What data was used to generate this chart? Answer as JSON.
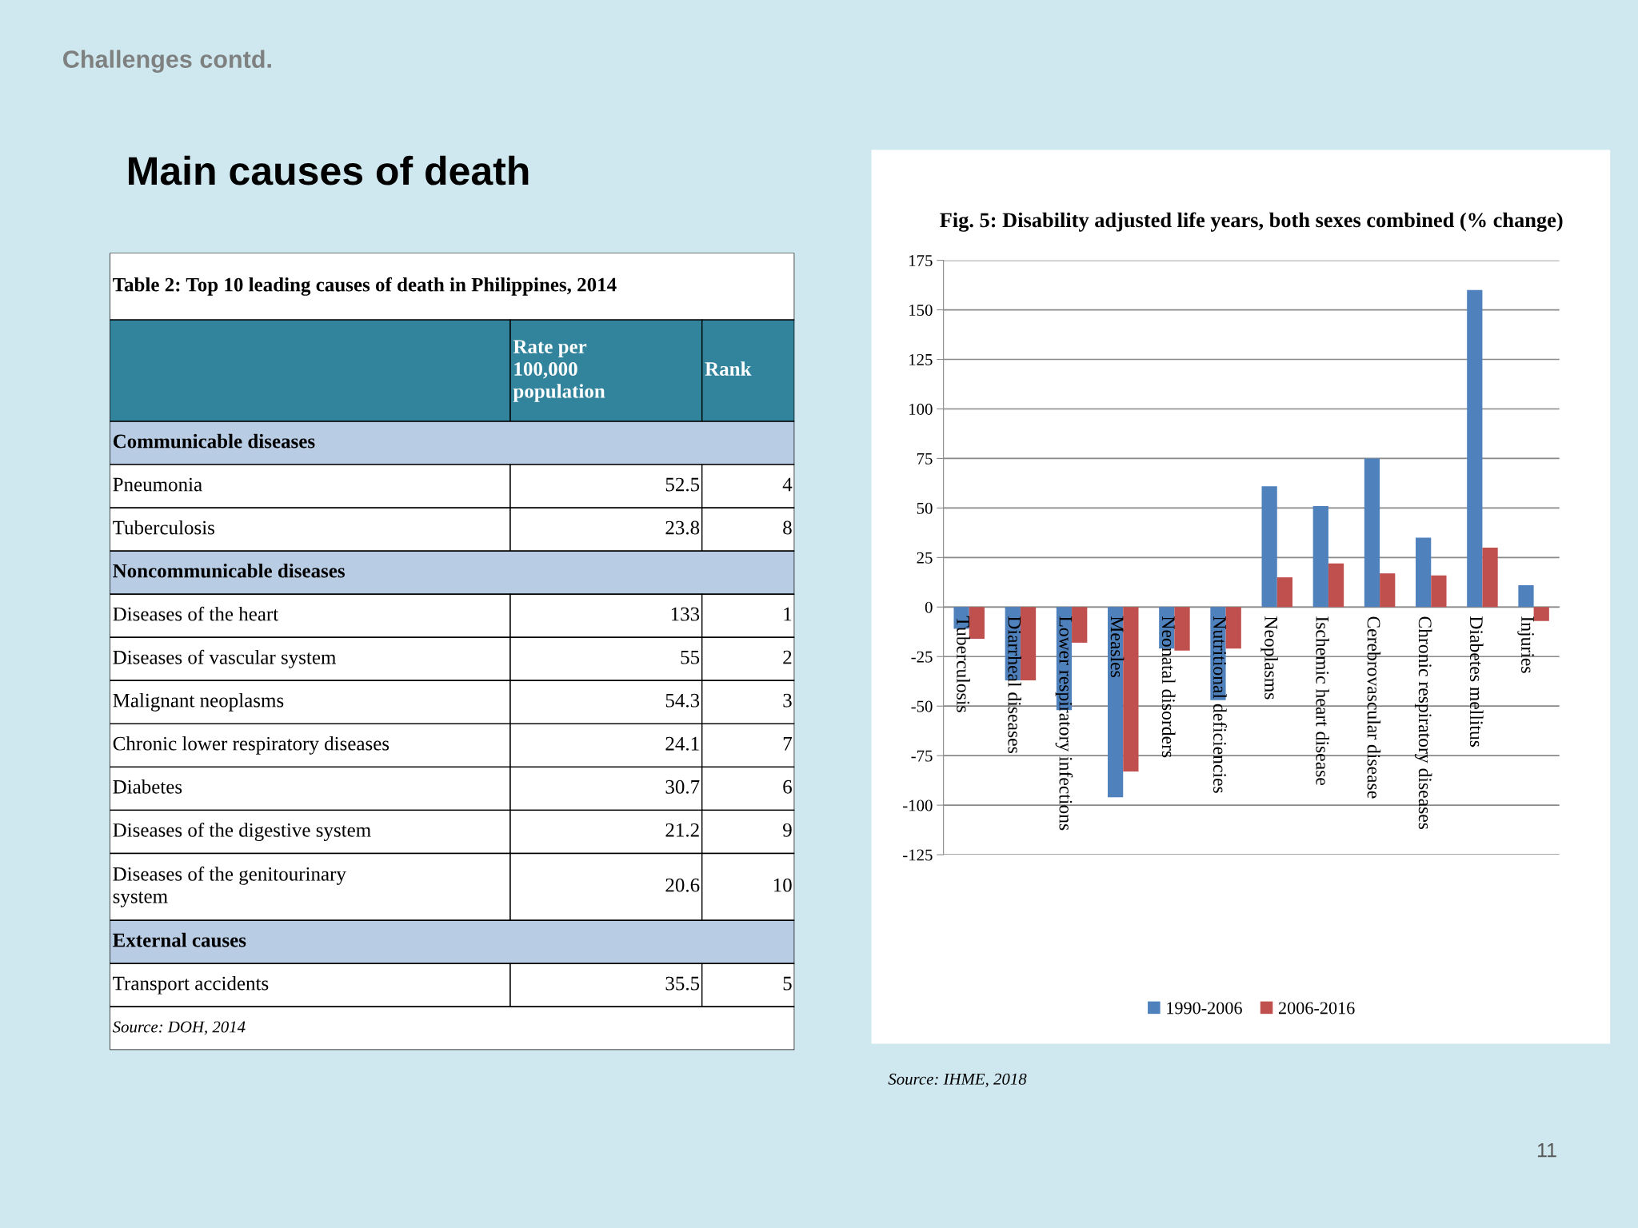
{
  "chart_data": [
    {
      "type": "other",
      "title": "Table 2: Top 10 leading causes of death in Philippines, 2014",
      "categories": [
        "Communicable diseases",
        "Pneumonia",
        "Tuberculosis",
        "Noncommunicable diseases",
        "Diseases of the heart",
        "Diseases of vascular system",
        "Malignant neoplasms",
        "Chronic lower respiratory diseases",
        "Diabetes",
        "Diseases of the digestive system",
        "Diseases of the genitourinary system",
        "External causes",
        "Transport accidents"
      ],
      "series": [
        {
          "values": [
            null,
            52.5,
            23.8,
            null,
            133,
            55,
            54.3,
            24.1,
            30.7,
            21.2,
            20.6,
            null,
            35.5
          ]
        },
        {
          "values": [
            null,
            4,
            8,
            null,
            1,
            2,
            3,
            7,
            6,
            9,
            10,
            null,
            5
          ]
        }
      ],
      "data_labels": true,
      "annotations": [
        "Challenges contd.",
        "Main causes of death",
        "Rate per 100,000 population",
        "Rank",
        "Source: DOH, 2014",
        "11"
      ]
    },
    {
      "type": "bar",
      "title": "Fig. 5: Disability adjusted life years, both sexes combined (% change)",
      "categories": [
        "Tuberculosis",
        "Diarrheal diseases",
        "Lower respiratory infections",
        "Measles",
        "Neonatal disorders",
        "Nutritional deficiencies",
        "Neoplasms",
        "Ischemic heart disease",
        "Cerebrovascular disease",
        "Chronic respiratory diseases",
        "Diabetes mellitus",
        "Injuries"
      ],
      "series": [
        {
          "name": "1990-2006",
          "color": "#4f81bd",
          "values": [
            -11,
            -37,
            -52,
            -96,
            -21,
            -47,
            61,
            51,
            75,
            35,
            160,
            11
          ]
        },
        {
          "name": "2006-2016",
          "color": "#c0504d",
          "values": [
            -16,
            -37,
            -18,
            -83,
            -22,
            -21,
            15,
            22,
            17,
            16,
            30,
            -7
          ]
        }
      ],
      "ylim": [
        -125,
        175
      ],
      "yticks": [
        -125,
        -100,
        -75,
        -50,
        -25,
        0,
        25,
        50,
        75,
        100,
        125,
        150,
        175
      ],
      "grid": "y",
      "legend": "bottom",
      "annotations": [
        "Source: IHME, 2018"
      ]
    }
  ]
}
